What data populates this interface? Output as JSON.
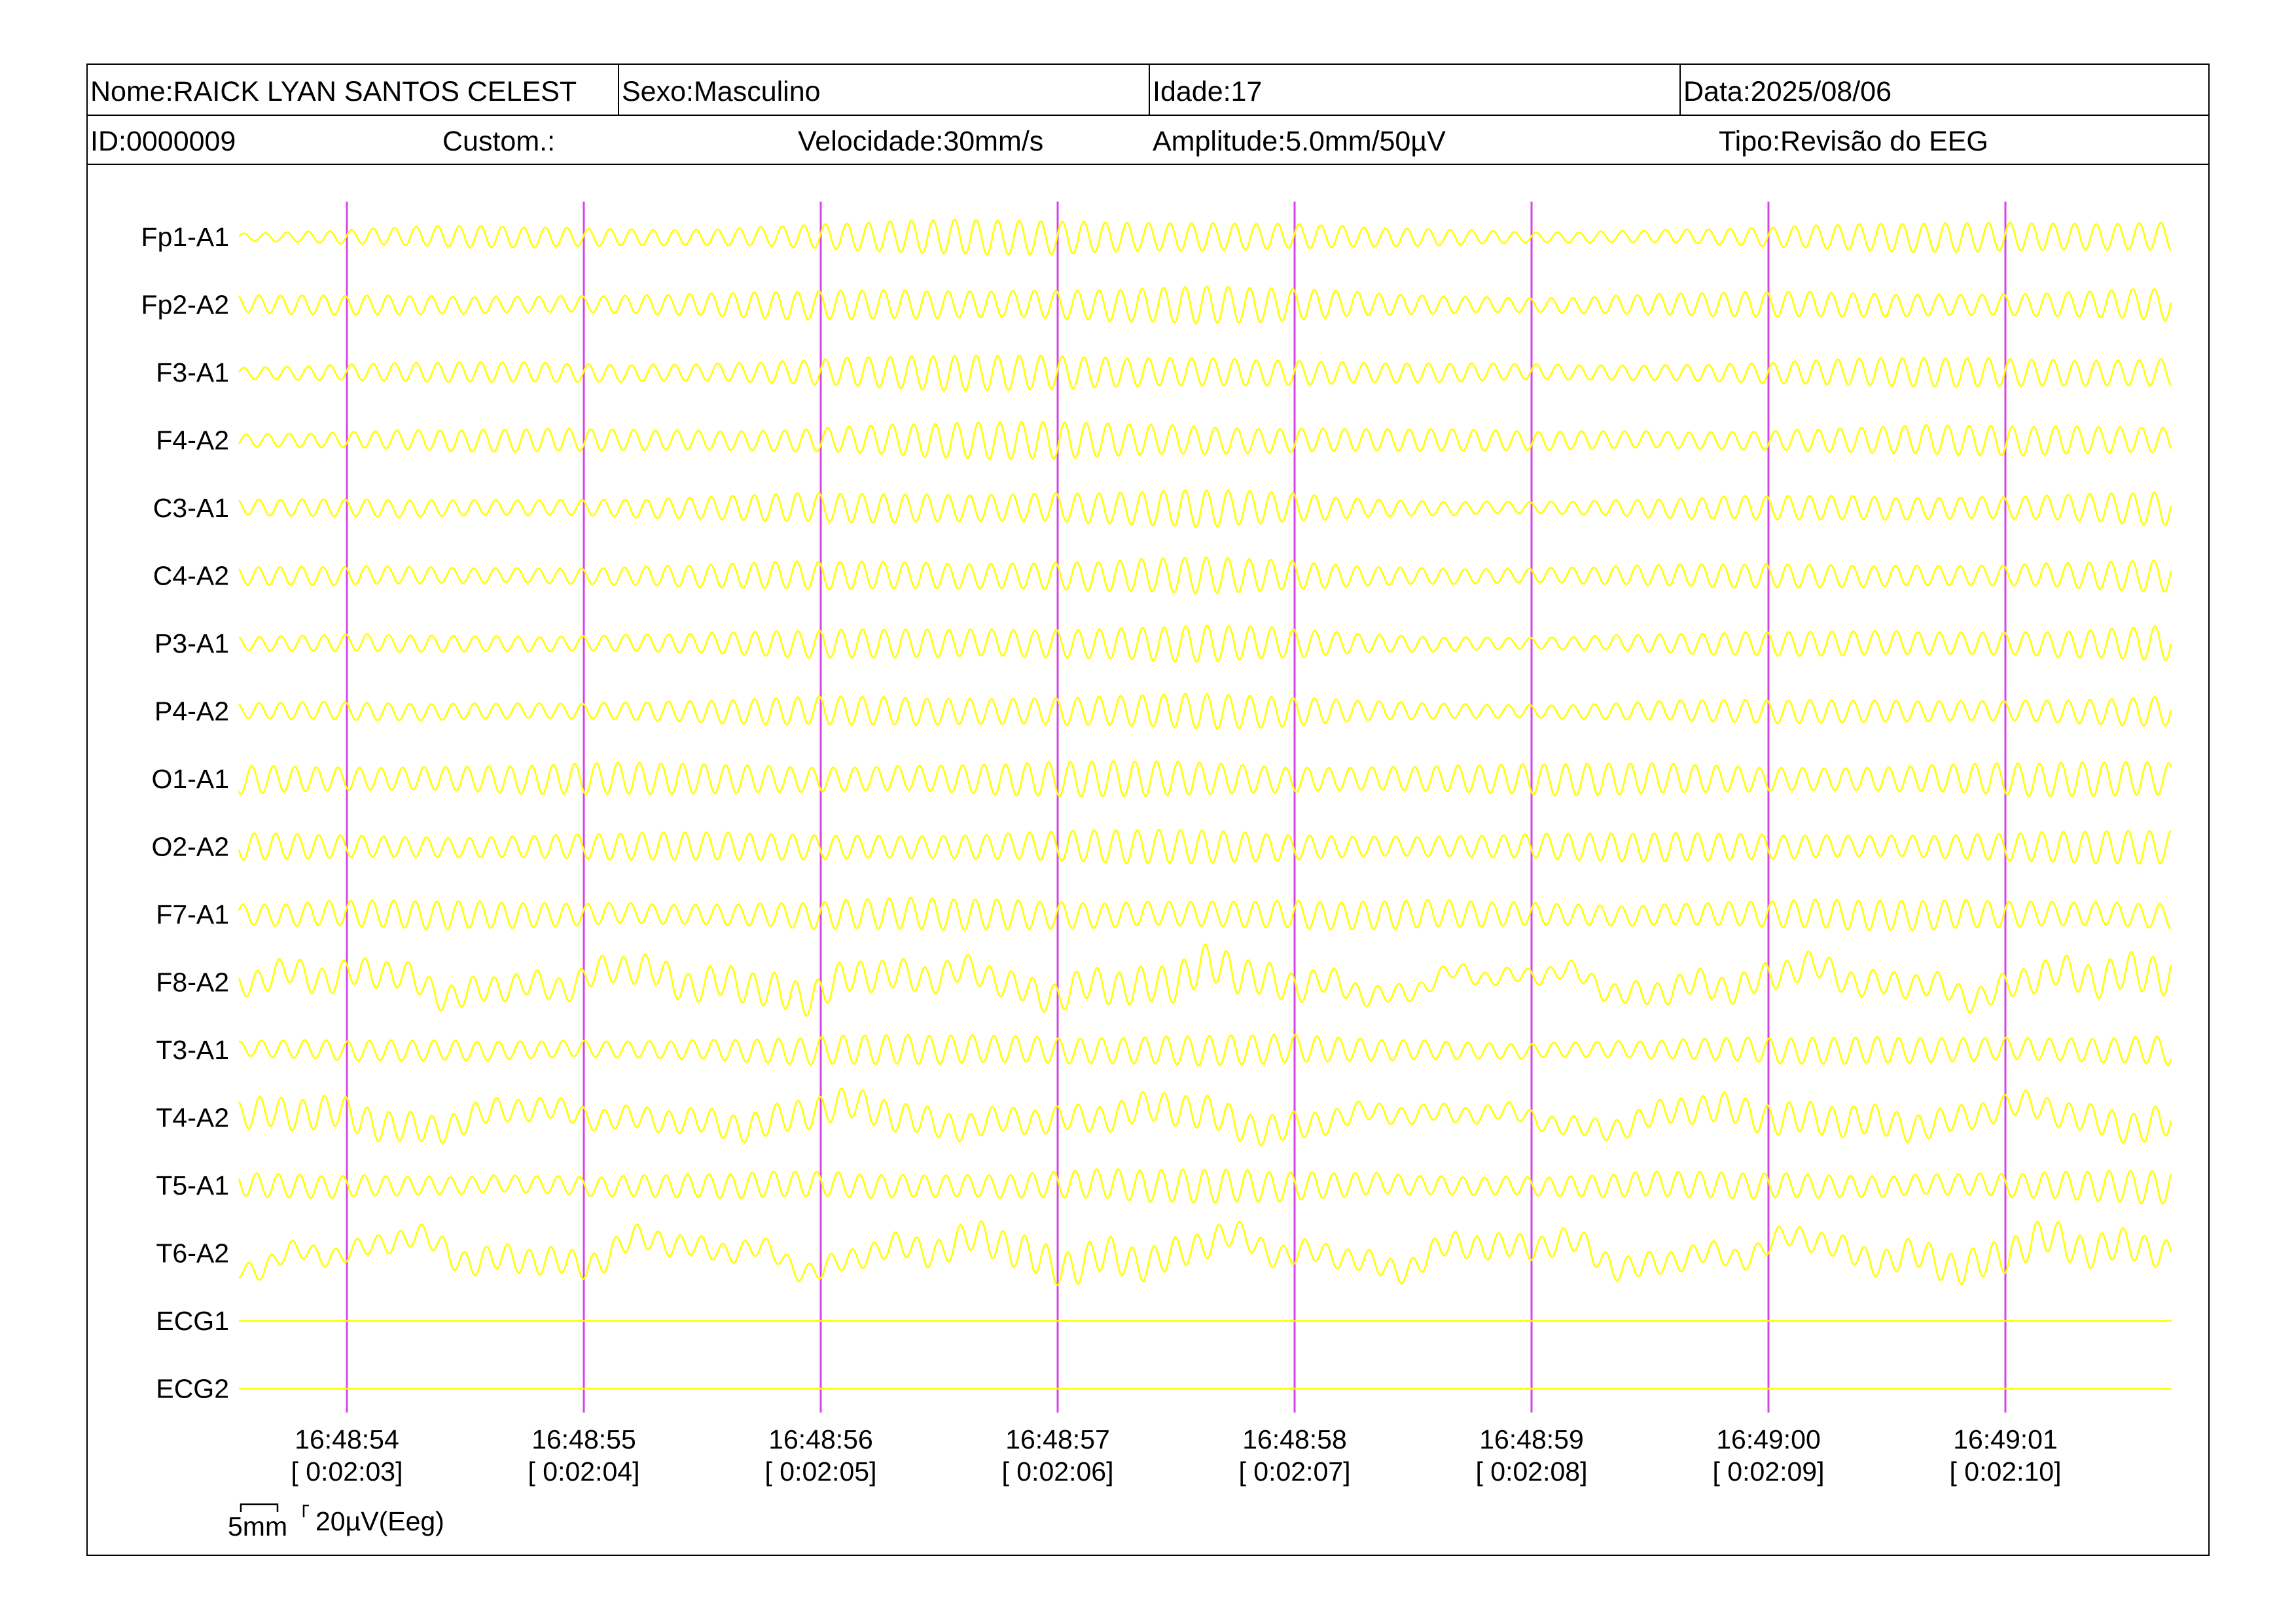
{
  "header": {
    "nome": "Nome:RAICK LYAN SANTOS CELEST",
    "sexo": "Sexo:Masculino",
    "idade": "Idade:17",
    "data": "Data:2025/08/06",
    "id": "ID:0000009",
    "custom": "Custom.:",
    "velocidade": "Velocidade:30mm/s",
    "amplitude": "Amplitude:5.0mm/50µV",
    "tipo": "Tipo:Revisão do EEG"
  },
  "scale_bar": {
    "time_label": "5mm",
    "amplitude_label": "20µV(Eeg)"
  },
  "colors": {
    "trace": "#ffff00",
    "marker": "#d445e8",
    "text": "#000000",
    "background": "#ffffff"
  },
  "chart_data": {
    "type": "line",
    "title": "",
    "channels": [
      "Fp1-A1",
      "Fp2-A2",
      "F3-A1",
      "F4-A2",
      "C3-A1",
      "C4-A2",
      "P3-A1",
      "P4-A2",
      "O1-A1",
      "O2-A2",
      "F7-A1",
      "F8-A2",
      "T3-A1",
      "T4-A2",
      "T5-A1",
      "T6-A2",
      "ECG1",
      "ECG2"
    ],
    "x_ticks": [
      {
        "time": "16:48:54",
        "elapsed": "[ 0:02:03]"
      },
      {
        "time": "16:48:55",
        "elapsed": "[ 0:02:04]"
      },
      {
        "time": "16:48:56",
        "elapsed": "[ 0:02:05]"
      },
      {
        "time": "16:48:57",
        "elapsed": "[ 0:02:06]"
      },
      {
        "time": "16:48:58",
        "elapsed": "[ 0:02:07]"
      },
      {
        "time": "16:48:59",
        "elapsed": "[ 0:02:08]"
      },
      {
        "time": "16:49:00",
        "elapsed": "[ 0:02:09]"
      },
      {
        "time": "16:49:01",
        "elapsed": "[ 0:02:10]"
      }
    ],
    "x_range_seconds": [
      -0.45,
      7.7
    ],
    "second_markers_at": [
      0,
      1,
      2,
      3,
      4,
      5,
      6,
      7
    ],
    "dominant_frequency_hz": 11,
    "envelope_breakpoints_s": [
      -0.45,
      0.5,
      1.5,
      3.0,
      3.6,
      4.3,
      5.0,
      6.5,
      7.7
    ],
    "envelope_levels": {
      "Fp1-A1": [
        0.25,
        0.55,
        0.55,
        1.0,
        1.0,
        0.5,
        0.3,
        0.7,
        1.0
      ],
      "Fp2-A2": [
        0.45,
        0.55,
        0.6,
        1.0,
        1.0,
        0.65,
        0.5,
        0.7,
        0.85
      ],
      "F3-A1": [
        0.4,
        0.5,
        0.6,
        1.0,
        1.0,
        0.5,
        0.45,
        0.7,
        0.95
      ],
      "F4-A2": [
        0.45,
        0.55,
        0.65,
        1.0,
        1.0,
        0.6,
        0.5,
        0.7,
        0.9
      ],
      "C3-A1": [
        0.4,
        0.5,
        0.6,
        1.0,
        1.0,
        0.5,
        0.4,
        0.7,
        0.9
      ],
      "C4-A2": [
        0.45,
        0.5,
        0.6,
        0.95,
        0.95,
        0.55,
        0.5,
        0.65,
        0.85
      ],
      "P3-A1": [
        0.35,
        0.5,
        0.55,
        1.0,
        1.0,
        0.5,
        0.4,
        0.7,
        0.95
      ],
      "P4-A2": [
        0.4,
        0.5,
        0.6,
        0.95,
        0.95,
        0.55,
        0.45,
        0.65,
        0.8
      ],
      "O1-A1": [
        0.8,
        0.8,
        0.8,
        0.9,
        0.9,
        0.8,
        0.8,
        0.8,
        0.9
      ],
      "O2-A2": [
        0.7,
        0.7,
        0.7,
        0.85,
        0.85,
        0.7,
        0.7,
        0.75,
        0.85
      ],
      "F7-A1": [
        0.7,
        0.7,
        0.7,
        0.85,
        0.85,
        0.7,
        0.7,
        0.75,
        0.85
      ],
      "F8-A2": [
        0.6,
        0.9,
        0.8,
        1.0,
        1.0,
        0.6,
        0.5,
        0.8,
        1.0
      ],
      "T3-A1": [
        0.45,
        0.55,
        0.6,
        0.9,
        0.9,
        0.55,
        0.5,
        0.7,
        0.85
      ],
      "T4-A2": [
        0.8,
        0.8,
        0.7,
        0.9,
        0.9,
        0.5,
        0.6,
        0.85,
        0.9
      ],
      "T5-A1": [
        0.6,
        0.6,
        0.6,
        0.85,
        0.85,
        0.7,
        0.6,
        0.7,
        0.85
      ],
      "T6-A2": [
        0.6,
        0.7,
        0.6,
        0.9,
        0.9,
        0.7,
        0.6,
        0.8,
        0.9
      ],
      "ECG1": [
        0,
        0,
        0,
        0,
        0,
        0,
        0,
        0,
        0
      ],
      "ECG2": [
        0,
        0,
        0,
        0,
        0,
        0,
        0,
        0,
        0
      ]
    },
    "slow_wave_relative_amplitude": {
      "Fp1-A1": 0.05,
      "Fp2-A2": 0.05,
      "F3-A1": 0.05,
      "F4-A2": 0.05,
      "C3-A1": 0.05,
      "C4-A2": 0.05,
      "P3-A1": 0.05,
      "P4-A2": 0.05,
      "O1-A1": 0.05,
      "O2-A2": 0.05,
      "F7-A1": 0.08,
      "F8-A2": 0.9,
      "T3-A1": 0.08,
      "T4-A2": 0.7,
      "T5-A1": 0.1,
      "T6-A2": 1.0,
      "ECG1": 0,
      "ECG2": 0
    }
  }
}
